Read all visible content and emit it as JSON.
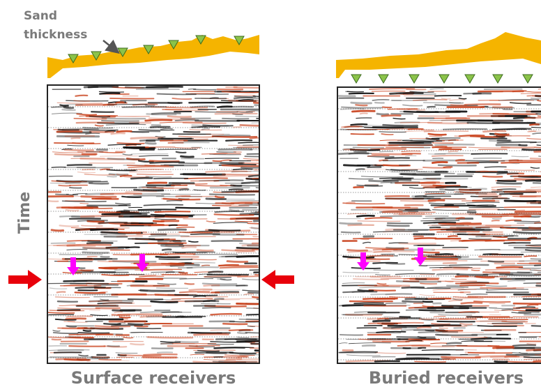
{
  "annotation": {
    "line1": "Sand",
    "line2": "thickness"
  },
  "axis_label": "Time",
  "panels": [
    {
      "label": "Surface receivers"
    },
    {
      "label": "Buried receivers"
    }
  ]
}
